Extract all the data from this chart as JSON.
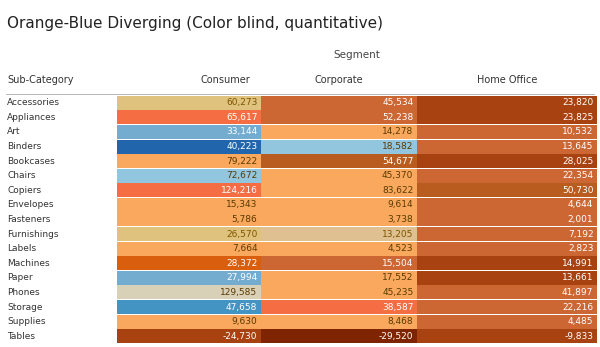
{
  "title": "Orange-Blue Diverging (Color blind, quantitative)",
  "segment_label": "Segment",
  "col_header": [
    "Sub-Category",
    "Consumer",
    "Corporate",
    "Home Office"
  ],
  "rows": [
    "Accessories",
    "Appliances",
    "Art",
    "Binders",
    "Bookcases",
    "Chairs",
    "Copiers",
    "Envelopes",
    "Fasteners",
    "Furnishings",
    "Labels",
    "Machines",
    "Paper",
    "Phones",
    "Storage",
    "Supplies",
    "Tables"
  ],
  "values": [
    [
      60273,
      45534,
      23820
    ],
    [
      65617,
      52238,
      23825
    ],
    [
      33144,
      14278,
      10532
    ],
    [
      40223,
      18582,
      13645
    ],
    [
      79222,
      54677,
      28025
    ],
    [
      72672,
      45370,
      22354
    ],
    [
      124216,
      83622,
      50730
    ],
    [
      15343,
      9614,
      4644
    ],
    [
      5786,
      3738,
      2001
    ],
    [
      26570,
      13205,
      7192
    ],
    [
      7664,
      4523,
      2823
    ],
    [
      28372,
      15504,
      14991
    ],
    [
      27994,
      17552,
      13661
    ],
    [
      129585,
      45235,
      41897
    ],
    [
      47658,
      38587,
      22216
    ],
    [
      9630,
      8468,
      4485
    ],
    [
      -24730,
      -29520,
      -9833
    ]
  ],
  "cell_colors": [
    [
      "#dfc27d",
      "#cc6633",
      "#a84210"
    ],
    [
      "#f46d43",
      "#cc6633",
      "#a84210"
    ],
    [
      "#74acd0",
      "#f9a85d",
      "#cc6633"
    ],
    [
      "#2166ac",
      "#92c5de",
      "#cc6633"
    ],
    [
      "#f9a85d",
      "#b85c20",
      "#a84210"
    ],
    [
      "#92c5de",
      "#f9a85d",
      "#cc6633"
    ],
    [
      "#f46d43",
      "#f9a85d",
      "#b85c20"
    ],
    [
      "#f9a85d",
      "#f9a85d",
      "#cc6633"
    ],
    [
      "#f9a85d",
      "#f9a85d",
      "#cc6633"
    ],
    [
      "#dfc27d",
      "#dfc090",
      "#cc6633"
    ],
    [
      "#f9a85d",
      "#f9a85d",
      "#cc6633"
    ],
    [
      "#d95f0e",
      "#cc6633",
      "#a84210"
    ],
    [
      "#74acd0",
      "#f9a85d",
      "#a84210"
    ],
    [
      "#d9d0b8",
      "#f9a85d",
      "#cc6633"
    ],
    [
      "#4393c3",
      "#f46d43",
      "#cc6633"
    ],
    [
      "#f9a85d",
      "#f9a85d",
      "#cc6633"
    ],
    [
      "#a84210",
      "#7f2400",
      "#a84210"
    ]
  ],
  "text_colors": [
    [
      "#7f5400",
      "#ffffff",
      "#ffffff"
    ],
    [
      "#ffffff",
      "#ffffff",
      "#ffffff"
    ],
    [
      "#ffffff",
      "#5a3a00",
      "#ffffff"
    ],
    [
      "#ffffff",
      "#5a3a00",
      "#ffffff"
    ],
    [
      "#5a3a00",
      "#ffffff",
      "#ffffff"
    ],
    [
      "#5a3a00",
      "#5a3a00",
      "#ffffff"
    ],
    [
      "#ffffff",
      "#5a3a00",
      "#ffffff"
    ],
    [
      "#5a3a00",
      "#5a3a00",
      "#ffffff"
    ],
    [
      "#5a3a00",
      "#5a3a00",
      "#ffffff"
    ],
    [
      "#7f5400",
      "#7f5400",
      "#ffffff"
    ],
    [
      "#5a3a00",
      "#5a3a00",
      "#ffffff"
    ],
    [
      "#ffffff",
      "#ffffff",
      "#ffffff"
    ],
    [
      "#ffffff",
      "#5a3a00",
      "#ffffff"
    ],
    [
      "#5a3a00",
      "#5a3a00",
      "#ffffff"
    ],
    [
      "#ffffff",
      "#ffffff",
      "#ffffff"
    ],
    [
      "#5a3a00",
      "#5a3a00",
      "#ffffff"
    ],
    [
      "#ffffff",
      "#ffffff",
      "#ffffff"
    ]
  ],
  "bg_color": "#ffffff",
  "title_fontsize": 11,
  "segment_fontsize": 7.5,
  "header_fontsize": 7,
  "cell_fontsize": 6.5,
  "label_fontsize": 6.5
}
